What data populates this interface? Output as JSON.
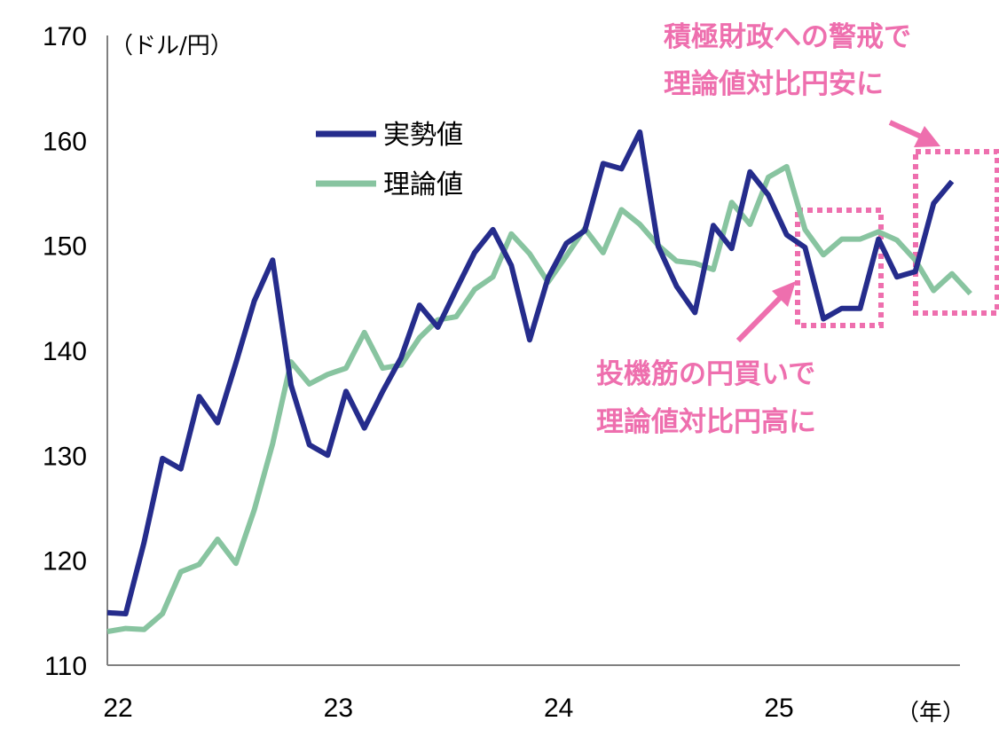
{
  "chart_data": {
    "type": "line",
    "title": "",
    "ylabel": "（ドル/円）",
    "xlabel": "（年）",
    "ylim": [
      110,
      170
    ],
    "yticks": [
      110,
      120,
      130,
      140,
      150,
      160,
      170
    ],
    "xlim": [
      0,
      46
    ],
    "xticks": [
      {
        "label": "22",
        "x": 0
      },
      {
        "label": "23",
        "x": 12
      },
      {
        "label": "24",
        "x": 24
      },
      {
        "label": "25",
        "x": 36
      }
    ],
    "legend_position": "upper-left",
    "series": [
      {
        "name": "実勢値",
        "color": "#252c8c",
        "values": [
          115.0,
          114.9,
          121.7,
          129.7,
          128.7,
          135.6,
          133.1,
          138.8,
          144.7,
          148.6,
          136.7,
          131.0,
          130.0,
          136.1,
          132.6,
          136.1,
          139.3,
          144.3,
          142.2,
          145.8,
          149.3,
          151.5,
          148.1,
          141.0,
          146.9,
          150.2,
          151.4,
          157.8,
          157.3,
          160.8,
          149.9,
          146.1,
          143.6,
          151.9,
          149.7,
          157.0,
          154.8,
          151.0,
          149.8,
          143.0,
          144.0,
          144.0,
          150.6,
          147.0,
          147.5,
          154.0,
          156.1
        ]
      },
      {
        "name": "理論値",
        "color": "#88c4a0",
        "values": [
          113.2,
          113.5,
          113.4,
          114.9,
          118.9,
          119.6,
          122.0,
          119.7,
          124.8,
          131.1,
          138.9,
          136.8,
          137.7,
          138.3,
          141.7,
          138.3,
          138.6,
          141.2,
          142.9,
          143.2,
          145.8,
          147.0,
          151.1,
          149.2,
          146.5,
          149.0,
          151.6,
          149.3,
          153.4,
          152.0,
          150.0,
          148.5,
          148.3,
          147.7,
          154.1,
          152.0,
          156.5,
          157.5,
          151.5,
          149.1,
          150.6,
          150.6,
          151.3,
          150.5,
          148.6,
          145.7,
          147.3,
          145.4
        ]
      }
    ],
    "annotations": [
      {
        "lines": [
          "積極財政への警戒で",
          "理論値対比円安に"
        ],
        "color": "#ee6fae"
      },
      {
        "lines": [
          "投機筋の円買いで",
          "理論値対比円高に"
        ],
        "color": "#ee6fae"
      }
    ]
  }
}
